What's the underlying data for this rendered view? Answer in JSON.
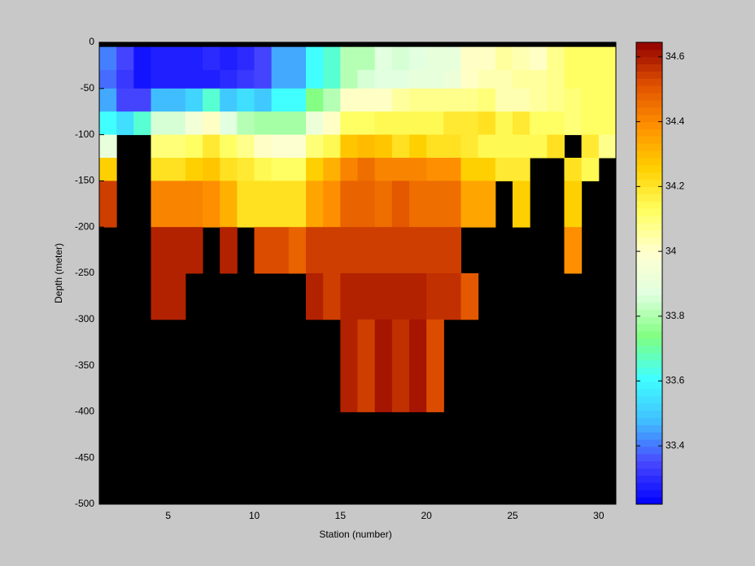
{
  "chart_data": {
    "type": "heatmap",
    "xlabel": "Station (number)",
    "ylabel": "Depth (meter)",
    "xlim": [
      1,
      31
    ],
    "ylim": [
      -500,
      0
    ],
    "xticks": [
      5,
      10,
      15,
      20,
      25,
      30
    ],
    "yticks": [
      0,
      -50,
      -100,
      -150,
      -200,
      -250,
      -300,
      -350,
      -400,
      -450,
      -500
    ],
    "x_edges": [
      1,
      2,
      3,
      4,
      5,
      6,
      7,
      8,
      9,
      10,
      11,
      12,
      13,
      14,
      15,
      16,
      17,
      18,
      19,
      20,
      21,
      22,
      23,
      24,
      25,
      26,
      27,
      28,
      29,
      30,
      31
    ],
    "y_edges": [
      -5,
      -30,
      -50,
      -75,
      -100,
      -125,
      -150,
      -200,
      -250,
      -300,
      -400,
      -500
    ],
    "values": [
      [
        33.4,
        33.35,
        33.25,
        33.27,
        33.28,
        33.28,
        33.3,
        33.28,
        33.3,
        33.35,
        33.45,
        33.45,
        33.62,
        33.65,
        33.8,
        33.82,
        33.87,
        33.85,
        33.87,
        33.9,
        33.9,
        34.0,
        34.02,
        34.05,
        34.03,
        34.0,
        34.08,
        34.12,
        34.12,
        34.12
      ],
      [
        33.38,
        33.33,
        33.25,
        33.27,
        33.27,
        33.27,
        33.28,
        33.3,
        33.32,
        33.35,
        33.45,
        33.45,
        33.62,
        33.65,
        33.82,
        33.85,
        33.88,
        33.88,
        33.9,
        33.9,
        33.92,
        34.0,
        34.03,
        34.04,
        34.05,
        34.05,
        34.08,
        34.12,
        34.12,
        34.12
      ],
      [
        33.45,
        33.35,
        33.35,
        33.48,
        33.48,
        33.52,
        33.65,
        33.5,
        33.55,
        33.5,
        33.62,
        33.62,
        33.75,
        33.8,
        34.0,
        34.02,
        34.02,
        34.05,
        34.07,
        34.07,
        34.08,
        34.08,
        34.1,
        34.03,
        34.03,
        34.06,
        34.08,
        34.1,
        34.12,
        34.12
      ],
      [
        33.6,
        33.55,
        33.65,
        33.85,
        33.85,
        33.95,
        34.02,
        33.88,
        33.8,
        33.78,
        33.78,
        33.78,
        33.92,
        34.0,
        34.12,
        34.12,
        34.15,
        34.15,
        34.15,
        34.15,
        34.18,
        34.18,
        34.2,
        34.15,
        34.18,
        34.12,
        34.12,
        34.1,
        34.12,
        34.12
      ],
      [
        33.9,
        null,
        null,
        34.1,
        34.1,
        34.12,
        34.18,
        34.12,
        34.08,
        34.0,
        33.98,
        33.98,
        34.1,
        34.15,
        34.27,
        34.3,
        34.28,
        34.22,
        34.25,
        34.22,
        34.2,
        34.18,
        34.15,
        34.15,
        34.15,
        34.15,
        34.2,
        null,
        34.18,
        34.07
      ],
      [
        34.25,
        null,
        null,
        34.22,
        34.22,
        34.25,
        34.27,
        34.2,
        34.18,
        34.15,
        34.12,
        34.12,
        34.25,
        34.33,
        34.42,
        34.45,
        34.42,
        34.42,
        34.42,
        34.38,
        34.38,
        34.25,
        34.25,
        34.18,
        34.18,
        null,
        null,
        34.22,
        34.15,
        null
      ],
      [
        34.55,
        null,
        null,
        34.42,
        34.42,
        34.42,
        34.4,
        34.33,
        34.22,
        34.22,
        34.22,
        34.22,
        34.35,
        34.38,
        34.48,
        34.48,
        34.45,
        34.5,
        34.45,
        34.45,
        34.45,
        34.35,
        34.35,
        null,
        34.25,
        null,
        null,
        34.25,
        null,
        null
      ],
      [
        null,
        null,
        null,
        34.6,
        34.6,
        34.6,
        null,
        34.6,
        null,
        34.52,
        34.52,
        34.48,
        34.55,
        34.55,
        34.55,
        34.55,
        34.55,
        34.55,
        34.55,
        34.55,
        34.55,
        null,
        null,
        null,
        null,
        null,
        null,
        34.4,
        null,
        null
      ],
      [
        null,
        null,
        null,
        34.6,
        34.6,
        null,
        null,
        null,
        null,
        null,
        null,
        null,
        34.58,
        34.55,
        34.6,
        34.6,
        34.6,
        34.6,
        34.6,
        34.57,
        34.57,
        34.5,
        null,
        null,
        null,
        null,
        null,
        null,
        null,
        null
      ],
      [
        null,
        null,
        null,
        null,
        null,
        null,
        null,
        null,
        null,
        null,
        null,
        null,
        null,
        null,
        34.6,
        34.55,
        34.62,
        34.57,
        34.62,
        34.53,
        null,
        null,
        null,
        null,
        null,
        null,
        null,
        null,
        null,
        null
      ],
      [
        null,
        null,
        null,
        null,
        null,
        null,
        null,
        null,
        null,
        null,
        null,
        null,
        null,
        null,
        null,
        null,
        null,
        null,
        null,
        null,
        null,
        null,
        null,
        null,
        null,
        null,
        null,
        null,
        null,
        null
      ]
    ],
    "clim": [
      33.22,
      34.645
    ],
    "cticks": [
      33.4,
      33.6,
      33.8,
      34,
      34.2,
      34.4,
      34.6
    ],
    "colormap": [
      "#0000ff",
      "#4848ff",
      "#40c0ff",
      "#40ffff",
      "#80ff80",
      "#e0ffe0",
      "#ffffd0",
      "#ffff60",
      "#ffd000",
      "#ff9000",
      "#e05000",
      "#900000"
    ],
    "missing_color": "#000000"
  }
}
